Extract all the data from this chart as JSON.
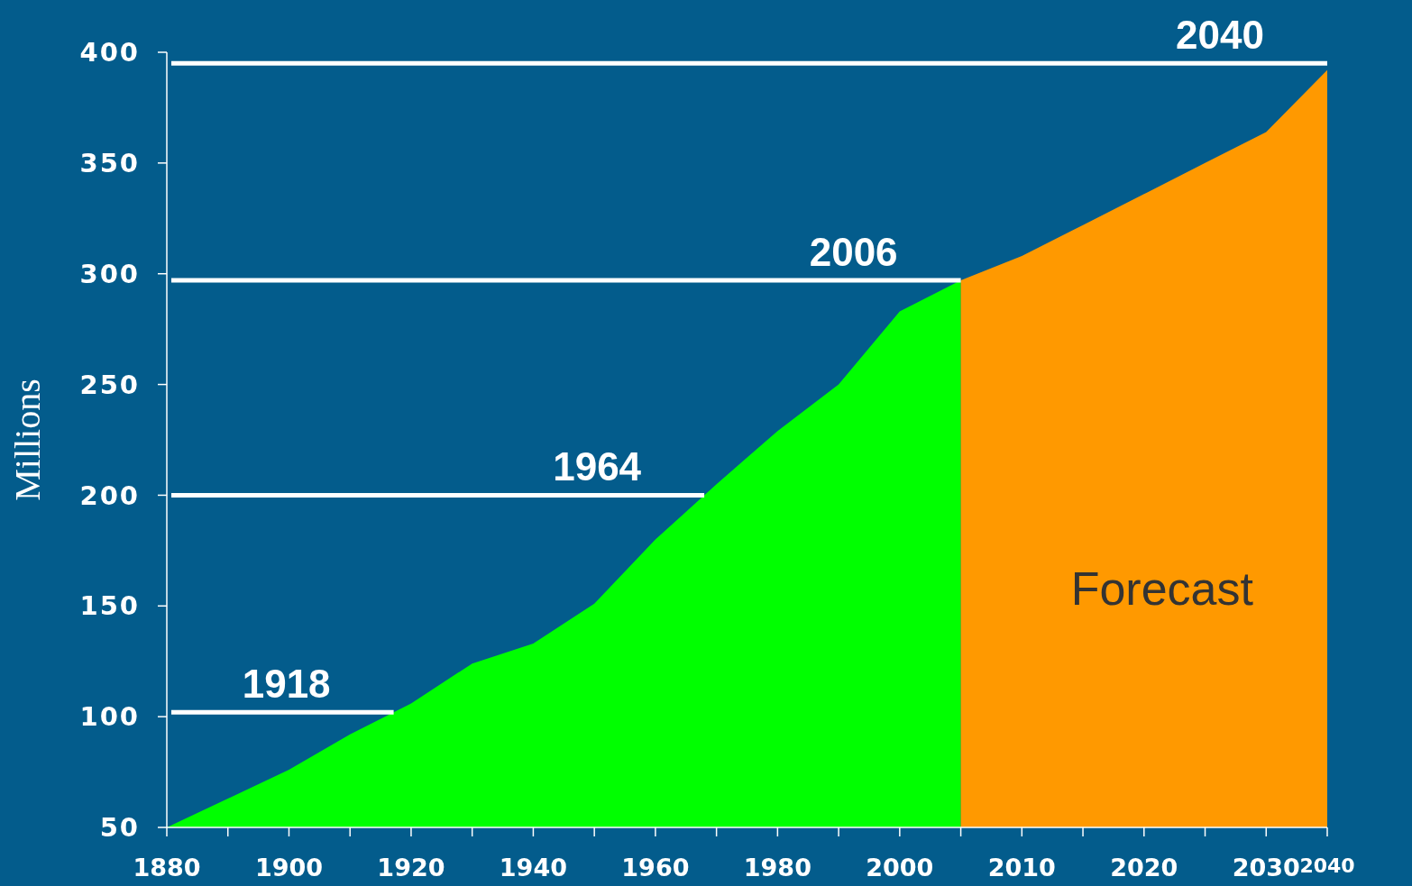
{
  "chart_data": {
    "type": "area",
    "ylabel": "Millions",
    "categories": [
      "1880",
      null,
      "1900",
      null,
      "1920",
      null,
      "1940",
      null,
      "1960",
      null,
      "1980",
      null,
      "2000",
      null,
      "2010",
      null,
      "2020",
      null,
      "2030",
      "2040"
    ],
    "series": [
      {
        "color": "#00ff00",
        "values": [
          50,
          63,
          76,
          92,
          106,
          124,
          133,
          151,
          180,
          205,
          229,
          250,
          283,
          297,
          null,
          null,
          null,
          null,
          null,
          null
        ]
      },
      {
        "color": "#ff9900",
        "values": [
          null,
          null,
          null,
          null,
          null,
          null,
          null,
          null,
          null,
          null,
          null,
          null,
          null,
          297,
          308,
          322,
          336,
          350,
          364,
          392
        ]
      }
    ],
    "ylim": [
      50,
      400
    ],
    "yticks": [
      50,
      100,
      150,
      200,
      250,
      300,
      350,
      400
    ],
    "ref_lines": [
      {
        "axis": "y",
        "value": 102,
        "color": "#ffffff"
      },
      {
        "axis": "y",
        "value": 200,
        "color": "#ffffff"
      },
      {
        "axis": "y",
        "value": 297,
        "color": "#ffffff"
      },
      {
        "axis": "y",
        "value": 395,
        "color": "#ffffff"
      }
    ],
    "annotations": [
      {
        "text": "1918",
        "y": 102
      },
      {
        "text": "1964",
        "y": 200
      },
      {
        "text": "2006",
        "y": 297
      },
      {
        "text": "2040",
        "y": 395
      },
      "Forecast"
    ],
    "grid": false,
    "legend": false
  }
}
